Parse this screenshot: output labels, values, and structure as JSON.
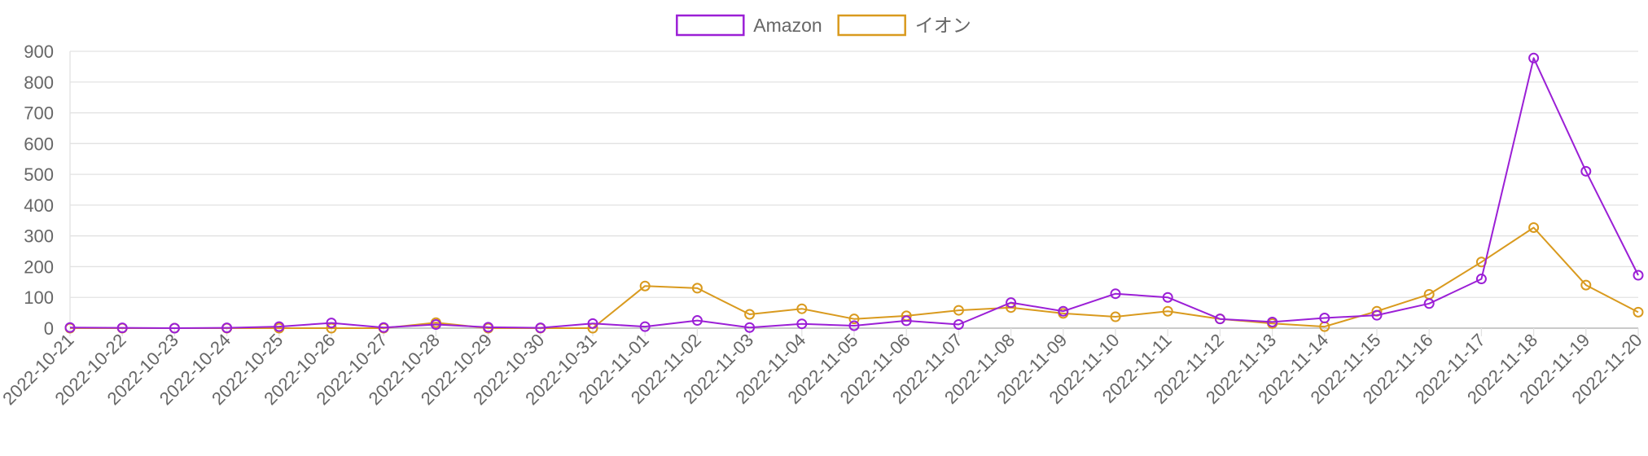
{
  "chart_data": {
    "type": "line",
    "x": [
      "2022-10-21",
      "2022-10-22",
      "2022-10-23",
      "2022-10-24",
      "2022-10-25",
      "2022-10-26",
      "2022-10-27",
      "2022-10-28",
      "2022-10-29",
      "2022-10-30",
      "2022-10-31",
      "2022-11-01",
      "2022-11-02",
      "2022-11-03",
      "2022-11-04",
      "2022-11-05",
      "2022-11-06",
      "2022-11-07",
      "2022-11-08",
      "2022-11-09",
      "2022-11-10",
      "2022-11-11",
      "2022-11-12",
      "2022-11-13",
      "2022-11-14",
      "2022-11-15",
      "2022-11-16",
      "2022-11-17",
      "2022-11-18",
      "2022-11-19",
      "2022-11-20"
    ],
    "series": [
      {
        "name": "Amazon",
        "color": "#9b1fd6",
        "values": [
          2,
          1,
          0,
          1,
          5,
          17,
          2,
          12,
          3,
          1,
          15,
          5,
          25,
          2,
          14,
          8,
          24,
          12,
          83,
          55,
          112,
          100,
          30,
          20,
          33,
          42,
          80,
          160,
          878,
          510,
          172
        ]
      },
      {
        "name": "イオン",
        "color": "#d99a1e",
        "values": [
          0,
          0,
          0,
          0,
          0,
          0,
          0,
          18,
          0,
          0,
          0,
          137,
          130,
          45,
          63,
          30,
          40,
          58,
          67,
          48,
          37,
          55,
          30,
          15,
          5,
          55,
          110,
          215,
          327,
          140,
          52
        ]
      }
    ],
    "y_ticks": [
      "0",
      "100",
      "200",
      "300",
      "400",
      "500",
      "600",
      "700",
      "800",
      "900"
    ],
    "ylim": [
      0,
      900
    ],
    "grid": true,
    "legend_position": "top-center",
    "title": "",
    "xlabel": "",
    "ylabel": ""
  }
}
